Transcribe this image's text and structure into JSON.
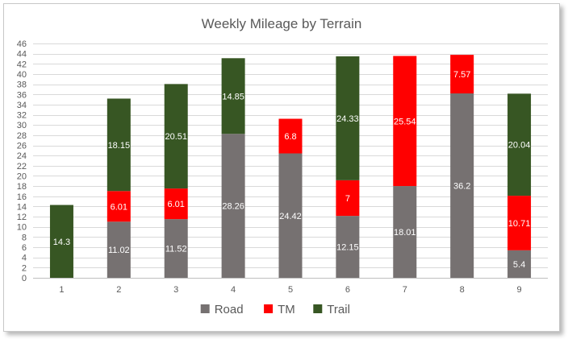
{
  "chart_data": {
    "type": "bar",
    "stacked": true,
    "title": "Weekly Mileage by Terrain",
    "xlabel": "",
    "ylabel": "",
    "categories": [
      "1",
      "2",
      "3",
      "4",
      "5",
      "6",
      "7",
      "8",
      "9"
    ],
    "ylim": [
      0,
      46
    ],
    "ytick_step": 2,
    "grid": true,
    "legend_position": "bottom",
    "series": [
      {
        "name": "Road",
        "color": "#767171",
        "values": [
          0,
          11.02,
          11.52,
          28.26,
          24.42,
          12.15,
          18.01,
          36.2,
          5.4
        ]
      },
      {
        "name": "TM",
        "color": "#ff0000",
        "values": [
          0,
          6.01,
          6.01,
          0,
          6.8,
          7,
          25.54,
          7.57,
          10.71
        ]
      },
      {
        "name": "Trail",
        "color": "#375623",
        "values": [
          14.3,
          18.15,
          20.51,
          14.85,
          0,
          24.33,
          0,
          0,
          20.04
        ]
      }
    ]
  }
}
